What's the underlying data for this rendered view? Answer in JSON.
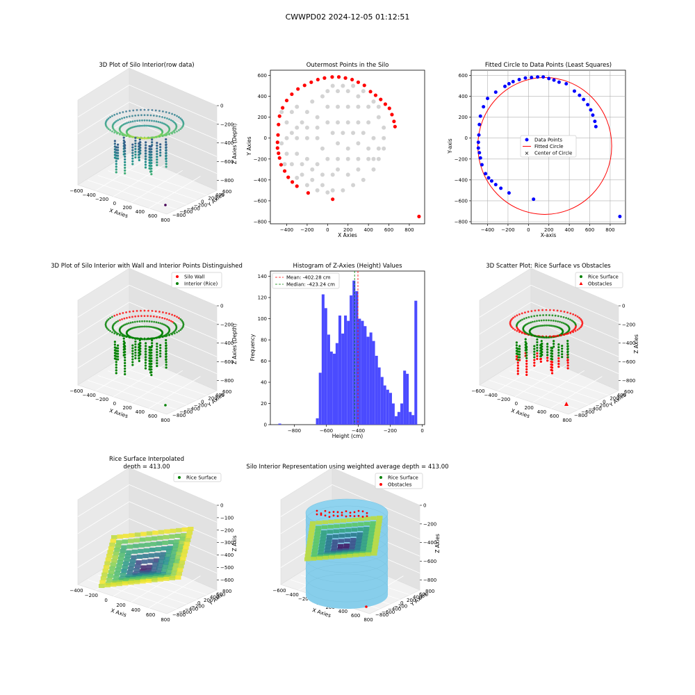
{
  "figure": {
    "suptitle": "CWWPD02 2024-12-05 01:12:51"
  },
  "chart_data": [
    {
      "id": "silo3d_raw",
      "type": "scatter",
      "title": "3D Plot of Silo Interior(row data)",
      "xlabel": "X Axies",
      "ylabel": "Y Axies",
      "zlabel": "Z Axies (Depth)",
      "x_ticks": [
        "−600",
        "−400",
        "−200",
        "0",
        "200",
        "400",
        "600",
        "800"
      ],
      "y_ticks": [
        "600",
        "400",
        "200",
        "0",
        "−200",
        "−400",
        "−600",
        "−800"
      ],
      "z_ticks": [
        "0",
        "−200",
        "−400",
        "−600",
        "−800"
      ],
      "colormap": "viridis"
    },
    {
      "id": "outermost_points",
      "type": "scatter",
      "title": "Outermost Points in the Silo",
      "xlabel": "X Axies",
      "ylabel": "Y Axies",
      "xlim": [
        -560,
        950
      ],
      "ylim": [
        -820,
        650
      ],
      "x_ticks": [
        -400,
        -200,
        0,
        200,
        400,
        600,
        800
      ],
      "y_ticks": [
        -800,
        -600,
        -400,
        -200,
        0,
        200,
        400,
        600
      ],
      "all_points_color": "#d3d3d3",
      "outer_points_color": "#ff0000",
      "outer_points": [
        [
          -490,
          -40
        ],
        [
          -485,
          30
        ],
        [
          -480,
          130
        ],
        [
          -470,
          210
        ],
        [
          -440,
          290
        ],
        [
          -400,
          360
        ],
        [
          -350,
          420
        ],
        [
          -290,
          470
        ],
        [
          -225,
          505
        ],
        [
          -160,
          535
        ],
        [
          -95,
          560
        ],
        [
          -30,
          575
        ],
        [
          45,
          585
        ],
        [
          110,
          585
        ],
        [
          175,
          575
        ],
        [
          240,
          560
        ],
        [
          300,
          535
        ],
        [
          360,
          505
        ],
        [
          420,
          445
        ],
        [
          470,
          410
        ],
        [
          520,
          370
        ],
        [
          565,
          325
        ],
        [
          605,
          285
        ],
        [
          630,
          225
        ],
        [
          650,
          160
        ],
        [
          660,
          110
        ],
        [
          -490,
          -95
        ],
        [
          -480,
          -145
        ],
        [
          -470,
          -190
        ],
        [
          -455,
          -255
        ],
        [
          -420,
          -315
        ],
        [
          -385,
          -375
        ],
        [
          -345,
          -420
        ],
        [
          -300,
          -460
        ],
        [
          -190,
          -525
        ],
        [
          50,
          -585
        ],
        [
          895,
          -750
        ]
      ],
      "grey_points": [
        [
          -100,
          0
        ],
        [
          -200,
          0
        ],
        [
          -300,
          0
        ],
        [
          -400,
          0
        ],
        [
          -100,
          100
        ],
        [
          -200,
          100
        ],
        [
          -300,
          100
        ],
        [
          -400,
          150
        ],
        [
          -100,
          200
        ],
        [
          -200,
          250
        ],
        [
          -300,
          300
        ],
        [
          0,
          150
        ],
        [
          0,
          300
        ],
        [
          0,
          450
        ],
        [
          100,
          150
        ],
        [
          100,
          300
        ],
        [
          100,
          450
        ],
        [
          200,
          150
        ],
        [
          200,
          300
        ],
        [
          200,
          450
        ],
        [
          300,
          150
        ],
        [
          300,
          300
        ],
        [
          300,
          400
        ],
        [
          400,
          150
        ],
        [
          400,
          300
        ],
        [
          500,
          200
        ],
        [
          550,
          100
        ],
        [
          550,
          0
        ],
        [
          550,
          -100
        ],
        [
          500,
          -200
        ],
        [
          450,
          -300
        ],
        [
          350,
          -400
        ],
        [
          250,
          -450
        ],
        [
          150,
          -500
        ],
        [
          50,
          -500
        ],
        [
          -50,
          -450
        ],
        [
          -150,
          -400
        ],
        [
          -250,
          -350
        ],
        [
          -350,
          -250
        ],
        [
          -400,
          -150
        ],
        [
          -300,
          -150
        ],
        [
          -200,
          -200
        ],
        [
          -100,
          -250
        ],
        [
          0,
          -200
        ],
        [
          -50,
          -100
        ],
        [
          100,
          -50
        ],
        [
          200,
          -100
        ],
        [
          300,
          -50
        ],
        [
          400,
          -100
        ],
        [
          450,
          0
        ],
        [
          350,
          50
        ],
        [
          250,
          50
        ],
        [
          150,
          50
        ],
        [
          50,
          50
        ],
        [
          -150,
          -300
        ],
        [
          -250,
          -250
        ],
        [
          -50,
          -350
        ],
        [
          50,
          -350
        ],
        [
          100,
          -200
        ],
        [
          200,
          -200
        ],
        [
          300,
          -200
        ],
        [
          400,
          -200
        ],
        [
          -350,
          50
        ],
        [
          -450,
          -50
        ],
        [
          -250,
          150
        ],
        [
          -150,
          350
        ],
        [
          -50,
          400
        ],
        [
          50,
          500
        ],
        [
          150,
          500
        ],
        [
          250,
          500
        ],
        [
          350,
          450
        ],
        [
          450,
          350
        ],
        [
          500,
          300
        ],
        [
          -350,
          250
        ],
        [
          -450,
          250
        ],
        [
          -420,
          -250
        ],
        [
          -300,
          -380
        ],
        [
          -200,
          -450
        ],
        [
          -100,
          -500
        ],
        [
          0,
          -520
        ],
        [
          100,
          -300
        ],
        [
          200,
          -350
        ],
        [
          300,
          -300
        ],
        [
          450,
          -200
        ],
        [
          500,
          -100
        ]
      ]
    },
    {
      "id": "fitted_circle",
      "type": "scatter",
      "title": "Fitted Circle to Data Points (Least Squares)",
      "xlabel": "X-axis",
      "ylabel": "Y-axis",
      "xlim": [
        -560,
        950
      ],
      "ylim": [
        -820,
        650
      ],
      "x_ticks": [
        -400,
        -200,
        0,
        200,
        400,
        600,
        800
      ],
      "y_ticks": [
        -800,
        -600,
        -400,
        -200,
        0,
        200,
        400,
        600
      ],
      "grid": true,
      "legend": [
        "Data Points",
        "Fitted Circle",
        "Center of Circle"
      ],
      "legend_position": "center",
      "circle": {
        "cx": 160,
        "cy": -75,
        "r": 655
      },
      "point_color": "#0000ff",
      "circle_color": "#ff0000",
      "points": [
        [
          -490,
          -40
        ],
        [
          -485,
          30
        ],
        [
          -480,
          130
        ],
        [
          -470,
          210
        ],
        [
          -440,
          300
        ],
        [
          -400,
          380
        ],
        [
          -320,
          440
        ],
        [
          -230,
          495
        ],
        [
          -190,
          520
        ],
        [
          -150,
          540
        ],
        [
          -90,
          560
        ],
        [
          -30,
          575
        ],
        [
          30,
          580
        ],
        [
          90,
          585
        ],
        [
          145,
          585
        ],
        [
          200,
          570
        ],
        [
          250,
          555
        ],
        [
          300,
          535
        ],
        [
          370,
          520
        ],
        [
          450,
          450
        ],
        [
          500,
          410
        ],
        [
          540,
          370
        ],
        [
          580,
          320
        ],
        [
          610,
          270
        ],
        [
          630,
          220
        ],
        [
          650,
          160
        ],
        [
          660,
          110
        ],
        [
          -490,
          -95
        ],
        [
          -480,
          -140
        ],
        [
          -470,
          -190
        ],
        [
          -455,
          -255
        ],
        [
          -420,
          -340
        ],
        [
          -390,
          -380
        ],
        [
          -360,
          -410
        ],
        [
          -320,
          -445
        ],
        [
          -270,
          -480
        ],
        [
          -190,
          -525
        ],
        [
          50,
          -585
        ],
        [
          895,
          -750
        ]
      ]
    },
    {
      "id": "wall_interior_3d",
      "type": "scatter",
      "title": "3D Plot of Silo Interior with Wall and Interior Points Distinguished",
      "xlabel": "X Axies",
      "ylabel": "Y Axies",
      "zlabel": "Z Axies (Depth)",
      "x_ticks": [
        "−600",
        "−400",
        "−200",
        "0",
        "200",
        "400",
        "600",
        "800"
      ],
      "y_ticks": [
        "600",
        "400",
        "200",
        "0",
        "−200",
        "−400",
        "−600",
        "−800"
      ],
      "z_ticks": [
        "0",
        "−200",
        "−400",
        "−600",
        "−800"
      ],
      "legend": [
        {
          "label": "Silo Wall",
          "color": "#ff0000"
        },
        {
          "label": "Interior (Rice)",
          "color": "#008000"
        }
      ]
    },
    {
      "id": "z_histogram",
      "type": "bar",
      "title": "Histogram of Z-Axies (Height) Values",
      "xlabel": "Height (cm)",
      "ylabel": "Frequency",
      "xlim": [
        -950,
        15
      ],
      "ylim": [
        0,
        145
      ],
      "x_ticks": [
        -800,
        -600,
        -400,
        -200,
        0
      ],
      "y_ticks": [
        0,
        20,
        40,
        60,
        80,
        100,
        120,
        140
      ],
      "bin_width": 17.6,
      "bar_color": "#4b4bff",
      "bins": [
        [
          -900,
          1
        ],
        [
          -665,
          6
        ],
        [
          -647,
          49
        ],
        [
          -629,
          123
        ],
        [
          -612,
          110
        ],
        [
          -594,
          85
        ],
        [
          -577,
          69
        ],
        [
          -559,
          67
        ],
        [
          -542,
          77
        ],
        [
          -524,
          103
        ],
        [
          -506,
          86
        ],
        [
          -489,
          103
        ],
        [
          -471,
          98
        ],
        [
          -454,
          122
        ],
        [
          -436,
          136
        ],
        [
          -418,
          126
        ],
        [
          -401,
          100
        ],
        [
          -383,
          98
        ],
        [
          -366,
          93
        ],
        [
          -348,
          83
        ],
        [
          -330,
          87
        ],
        [
          -313,
          79
        ],
        [
          -295,
          65
        ],
        [
          -278,
          54
        ],
        [
          -260,
          45
        ],
        [
          -243,
          37
        ],
        [
          -225,
          33
        ],
        [
          -207,
          30
        ],
        [
          -190,
          20
        ],
        [
          -172,
          8
        ],
        [
          -155,
          12
        ],
        [
          -137,
          20
        ],
        [
          -119,
          51
        ],
        [
          -102,
          48
        ],
        [
          -84,
          12
        ],
        [
          -67,
          9
        ],
        [
          -49,
          117
        ]
      ],
      "mean": -402.28,
      "median": -423.24,
      "legend": [
        "Mean: -402.28 cm",
        "Median: -423.24 cm"
      ]
    },
    {
      "id": "rice_vs_obstacles_3d",
      "type": "scatter",
      "title": "3D Scatter Plot: Rice Surface vs Obstacles",
      "xlabel": "X Axies",
      "ylabel": "Y Axies",
      "zlabel": "Z Axies",
      "x_ticks": [
        "−600",
        "−400",
        "−200",
        "0",
        "200",
        "400",
        "600",
        "800"
      ],
      "y_ticks": [
        "600",
        "400",
        "200",
        "0",
        "−200",
        "−400",
        "−600",
        "−800"
      ],
      "z_ticks": [
        "0",
        "−200",
        "−400",
        "−600",
        "−800"
      ],
      "legend": [
        {
          "label": "Rice Surface",
          "color": "#008000"
        },
        {
          "label": "Obstacles",
          "color": "#ff0000"
        }
      ]
    },
    {
      "id": "rice_surface_interp",
      "type": "area",
      "title": "Rice Surface Interpolated",
      "subtitle": "depth = 413.00",
      "xlabel": "X Axis",
      "ylabel": "Y Axis",
      "zlabel": "Z Axis",
      "x_ticks": [
        "−400",
        "−200",
        "0",
        "200",
        "400",
        "600",
        "800"
      ],
      "y_ticks": [
        "800",
        "600",
        "400",
        "200",
        "0",
        "−200",
        "−400",
        "−600",
        "−800"
      ],
      "z_ticks": [
        "0",
        "−100",
        "−200",
        "−300",
        "−400",
        "−500",
        "−600"
      ],
      "legend": [
        {
          "label": "Rice Surface",
          "color": "#008000"
        }
      ]
    },
    {
      "id": "silo_weighted",
      "type": "area",
      "title": "Silo Interior Representation using weighted average depth = 413.00",
      "xlabel": "X Axies",
      "ylabel": "Y Axies",
      "zlabel": "Z Axies",
      "x_ticks": [
        "−600",
        "−400",
        "−200",
        "0",
        "200",
        "400",
        "600",
        "800"
      ],
      "y_ticks": [
        "800",
        "600",
        "400",
        "200",
        "0",
        "−200",
        "−400",
        "−600",
        "−800"
      ],
      "z_ticks": [
        "0",
        "−200",
        "−400",
        "−600",
        "−800"
      ],
      "legend": [
        {
          "label": "Rice Surface",
          "color": "#008000"
        },
        {
          "label": "Obstacles",
          "color": "#ff0000"
        }
      ]
    }
  ]
}
